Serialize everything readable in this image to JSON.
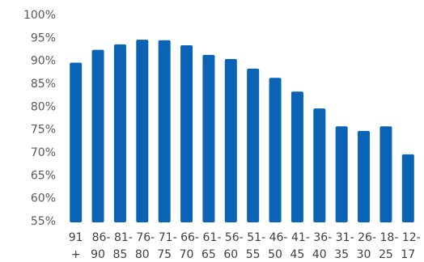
{
  "chart_data": {
    "type": "bar",
    "title": "",
    "xlabel": "",
    "ylabel": "",
    "ylim": [
      55,
      100
    ],
    "yticks": [
      "55%",
      "60%",
      "65%",
      "70%",
      "75%",
      "80%",
      "85%",
      "90%",
      "95%",
      "100%"
    ],
    "categories": [
      {
        "line1": "91",
        "line2": "+"
      },
      {
        "line1": "86-",
        "line2": "90"
      },
      {
        "line1": "81-",
        "line2": "85"
      },
      {
        "line1": "76-",
        "line2": "80"
      },
      {
        "line1": "71-",
        "line2": "75"
      },
      {
        "line1": "66-",
        "line2": "70"
      },
      {
        "line1": "61-",
        "line2": "65"
      },
      {
        "line1": "56-",
        "line2": "60"
      },
      {
        "line1": "51-",
        "line2": "55"
      },
      {
        "line1": "46-",
        "line2": "50"
      },
      {
        "line1": "41-",
        "line2": "45"
      },
      {
        "line1": "36-",
        "line2": "40"
      },
      {
        "line1": "31-",
        "line2": "35"
      },
      {
        "line1": "26-",
        "line2": "30"
      },
      {
        "line1": "18-",
        "line2": "25"
      },
      {
        "line1": "12-",
        "line2": "17"
      }
    ],
    "values": [
      89.5,
      92.3,
      93.5,
      94.5,
      94.4,
      93.3,
      91.2,
      90.3,
      88.2,
      86.2,
      83.2,
      79.5,
      75.6,
      74.6,
      75.6,
      69.5
    ],
    "bar_color": "#0b63b5",
    "grid": false,
    "legend": "none"
  }
}
